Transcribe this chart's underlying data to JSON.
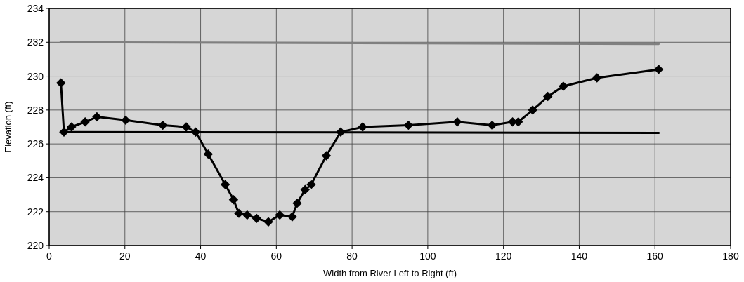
{
  "chart_data": {
    "type": "line",
    "xlabel": "Width from River Left to Right (ft)",
    "ylabel": "Elevation (ft)",
    "xlim": [
      0,
      180
    ],
    "xticks": [
      0,
      20,
      40,
      60,
      80,
      100,
      120,
      140,
      160,
      180
    ],
    "ylim": [
      220,
      234
    ],
    "yticks": [
      220,
      222,
      224,
      226,
      228,
      230,
      232,
      234
    ],
    "grid": true,
    "marker": "diamond",
    "line_style": "solid",
    "series": [
      {
        "color": "#808080",
        "marker": "none",
        "x": [
          3,
          161
        ],
        "values": [
          232.0,
          231.9
        ]
      },
      {
        "color": "#000000",
        "marker": "none",
        "x": [
          3,
          161
        ],
        "values": [
          226.7,
          226.65
        ]
      },
      {
        "color": "#000000",
        "x": [
          3.1,
          3.9,
          5.9,
          9.5,
          12.6,
          20.2,
          30,
          36.2,
          38.7,
          42,
          46.5,
          48.7,
          50.1,
          52.3,
          54.8,
          57.9,
          60.9,
          64.2,
          65.5,
          67.6,
          69.2,
          73.2,
          77,
          82.8,
          94.9,
          107.8,
          117,
          122.4,
          123.9,
          127.7,
          131.7,
          135.8,
          144.7,
          161
        ],
        "values": [
          229.6,
          226.7,
          227.0,
          227.3,
          227.6,
          227.4,
          227.1,
          227.0,
          226.7,
          225.4,
          223.6,
          222.7,
          221.9,
          221.8,
          221.6,
          221.4,
          221.8,
          221.7,
          222.5,
          223.3,
          223.6,
          225.3,
          226.7,
          227.0,
          227.1,
          227.3,
          227.1,
          227.3,
          227.3,
          228.0,
          228.8,
          229.4,
          229.9,
          230.4
        ]
      }
    ]
  }
}
